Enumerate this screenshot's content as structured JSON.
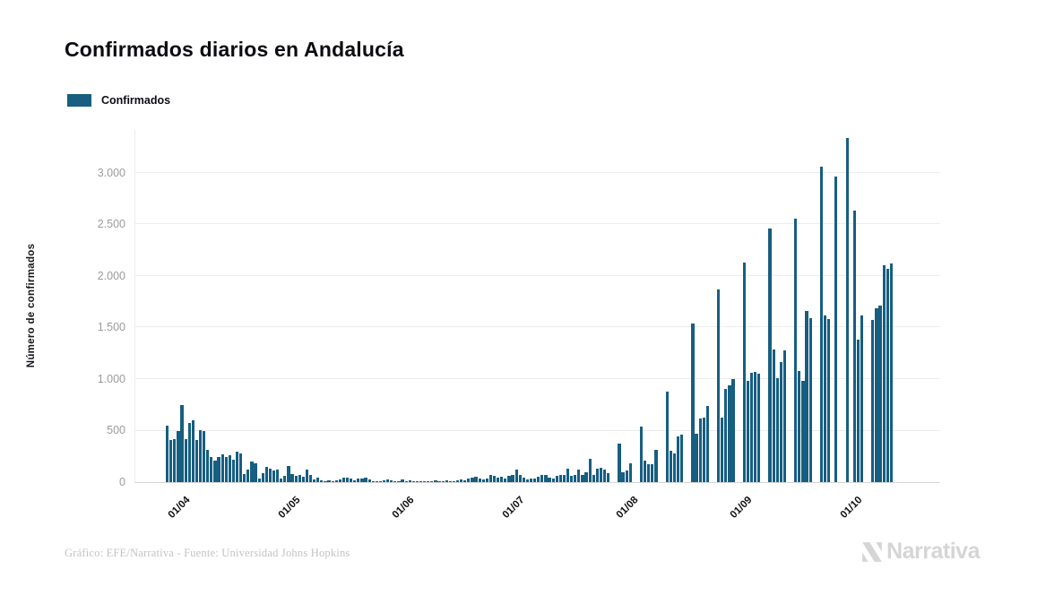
{
  "header": {
    "title": "Confirmados diarios en Andalucía"
  },
  "legend": {
    "label": "Confirmados",
    "swatch_color": "#175E81"
  },
  "footer": {
    "credit": "Gráfico: EFE/Narrativa - Fuente: Universidad Johns Hopkins",
    "brand": "Narrativa"
  },
  "colors": {
    "bar": "#175E81",
    "grid": "#ECECEC",
    "axis": "#D6D6D6",
    "y_tick_label": "#9B9B9B",
    "x_tick_label": "#111114",
    "title_text": "#0B0B10",
    "credit_text": "#C3C3C3",
    "brand_gray": "#D5D5D5"
  },
  "chart_data": {
    "type": "bar",
    "title": "Confirmados diarios en Andalucía",
    "xlabel": "",
    "ylabel": "Número de confirmados",
    "grid": true,
    "legend_position": "top-left",
    "ylim": [
      0,
      3417
    ],
    "y_ticks": [
      "0",
      "500",
      "1.000",
      "1.500",
      "2.000",
      "2.500",
      "3.000"
    ],
    "y_tick_values": [
      0,
      500,
      1000,
      1500,
      2000,
      2500,
      3000
    ],
    "x_ticks": [
      {
        "label": "01/04",
        "index": 5
      },
      {
        "label": "01/05",
        "index": 35
      },
      {
        "label": "01/06",
        "index": 66
      },
      {
        "label": "01/07",
        "index": 96
      },
      {
        "label": "01/08",
        "index": 127
      },
      {
        "label": "01/09",
        "index": 158
      },
      {
        "label": "01/10",
        "index": 188
      }
    ],
    "series": [
      {
        "name": "Confirmados",
        "values": [
          550,
          410,
          415,
          500,
          750,
          420,
          570,
          600,
          405,
          505,
          500,
          315,
          240,
          212,
          247,
          270,
          247,
          264,
          218,
          300,
          278,
          81,
          125,
          197,
          183,
          32,
          90,
          148,
          131,
          110,
          119,
          38,
          61,
          154,
          75,
          58,
          67,
          49,
          119,
          67,
          29,
          44,
          17,
          12,
          15,
          10,
          17,
          29,
          43,
          46,
          38,
          17,
          38,
          32,
          43,
          29,
          9,
          5,
          9,
          15,
          23,
          17,
          9,
          5,
          23,
          9,
          15,
          10,
          6,
          10,
          8,
          5,
          12,
          15,
          9,
          12,
          18,
          12,
          6,
          15,
          23,
          18,
          35,
          44,
          53,
          38,
          29,
          38,
          73,
          61,
          44,
          53,
          38,
          61,
          73,
          126,
          67,
          44,
          29,
          38,
          32,
          52,
          67,
          73,
          44,
          38,
          61,
          67,
          73,
          131,
          61,
          67,
          125,
          67,
          96,
          226,
          67,
          131,
          139,
          125,
          91,
          0,
          0,
          374,
          96,
          117,
          184,
          0,
          0,
          541,
          213,
          178,
          170,
          316,
          0,
          0,
          877,
          301,
          278,
          447,
          462,
          0,
          0,
          1540,
          468,
          614,
          629,
          740,
          0,
          0,
          1870,
          623,
          908,
          943,
          1000,
          0,
          0,
          2131,
          980,
          1058,
          1067,
          1053,
          0,
          0,
          2459,
          1284,
          1009,
          1165,
          1279,
          0,
          0,
          2560,
          1082,
          980,
          1662,
          1595,
          0,
          0,
          3060,
          1618,
          1580,
          0,
          2967,
          0,
          0,
          3338,
          0,
          2633,
          1386,
          1618,
          0,
          0,
          1574,
          1690,
          1711,
          2102,
          2073,
          2120
        ]
      }
    ]
  }
}
